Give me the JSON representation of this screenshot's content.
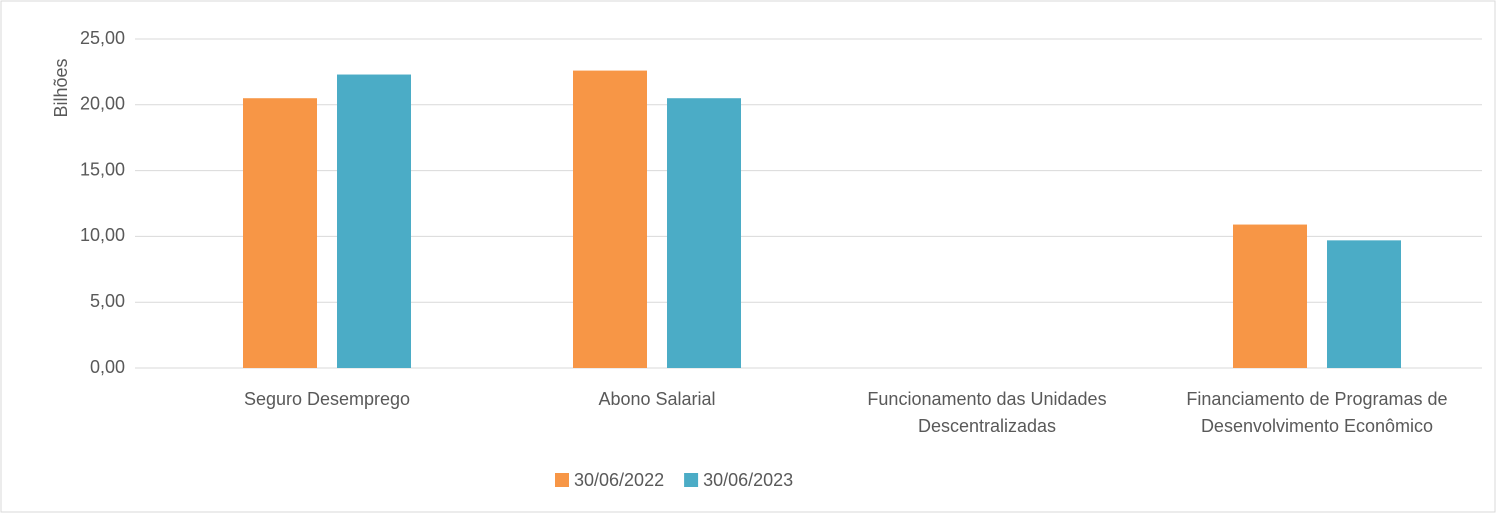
{
  "chart_data": {
    "type": "bar",
    "y_label": "Bilhões",
    "categories": [
      "Seguro Desemprego",
      "Abono Salarial",
      "Funcionamento das Unidades\nDescentralizadas",
      "Financiamento de Programas de\nDesenvolvimento Econômico"
    ],
    "series": [
      {
        "name": "30/06/2022",
        "color": "#F79646",
        "values": [
          20.5,
          22.6,
          0,
          10.9
        ]
      },
      {
        "name": "30/06/2023",
        "color": "#4BACC6",
        "values": [
          22.3,
          20.5,
          0,
          9.7
        ]
      }
    ],
    "ylim": [
      0,
      25
    ],
    "yticks": [
      {
        "value": 0,
        "label": "0,00"
      },
      {
        "value": 5,
        "label": "5,00"
      },
      {
        "value": 10,
        "label": "10,00"
      },
      {
        "value": 15,
        "label": "15,00"
      },
      {
        "value": 20,
        "label": "20,00"
      },
      {
        "value": 25,
        "label": "25,00"
      }
    ],
    "grid": true,
    "legend": "bottom"
  }
}
